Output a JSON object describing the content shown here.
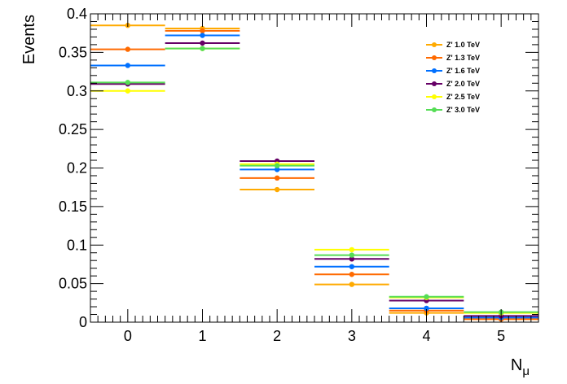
{
  "chart_data": {
    "type": "scatter",
    "style": "histogram-markers-with-x-error-bars",
    "xlabel": "N",
    "xlabel_subscript": "μ",
    "ylabel": "Events",
    "xlim": [
      -0.5,
      5.5
    ],
    "ylim": [
      0,
      0.4
    ],
    "x_ticks": [
      "0",
      "1",
      "2",
      "3",
      "4",
      "5"
    ],
    "y_ticks": [
      "0",
      "0.05",
      "0.1",
      "0.15",
      "0.2",
      "0.25",
      "0.3",
      "0.35",
      "0.4"
    ],
    "x_tick_values": [
      0,
      1,
      2,
      3,
      4,
      5
    ],
    "y_tick_values": [
      0,
      0.05,
      0.1,
      0.15,
      0.2,
      0.25,
      0.3,
      0.35,
      0.4
    ],
    "grid": false,
    "legend_position": "top-right",
    "x": [
      0,
      1,
      2,
      3,
      4,
      5
    ],
    "series": [
      {
        "name": "Z' 1.0 TeV",
        "color": "#ffaa00",
        "values": [
          0.385,
          0.381,
          0.172,
          0.049,
          0.012,
          0.004
        ]
      },
      {
        "name": "Z' 1.3 TeV",
        "color": "#ff6a00",
        "values": [
          0.354,
          0.378,
          0.187,
          0.062,
          0.015,
          0.004
        ]
      },
      {
        "name": "Z' 1.6 TeV",
        "color": "#0070ff",
        "values": [
          0.333,
          0.372,
          0.198,
          0.072,
          0.018,
          0.006
        ]
      },
      {
        "name": "Z' 2.0 TeV",
        "color": "#660066",
        "values": [
          0.309,
          0.362,
          0.209,
          0.082,
          0.028,
          0.008
        ]
      },
      {
        "name": "Z' 2.5 TeV",
        "color": "#ffff00",
        "values": [
          0.3,
          0.355,
          0.205,
          0.094,
          0.032,
          0.012
        ]
      },
      {
        "name": "Z' 3.0 TeV",
        "color": "#55dd55",
        "values": [
          0.311,
          0.355,
          0.203,
          0.087,
          0.033,
          0.013
        ]
      }
    ]
  }
}
